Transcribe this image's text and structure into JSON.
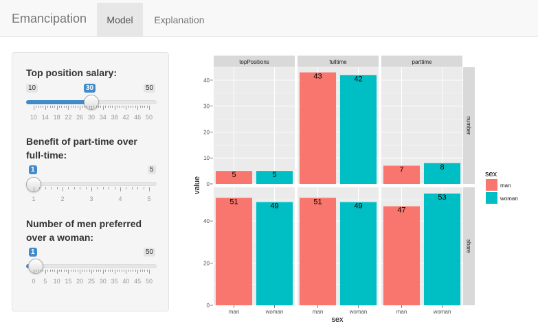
{
  "app": {
    "title": "Emancipation"
  },
  "tabs": [
    {
      "label": "Model",
      "active": true
    },
    {
      "label": "Explanation",
      "active": false
    }
  ],
  "sliders": [
    {
      "label": "Top position salary:",
      "min": 10,
      "max": 50,
      "value": 30,
      "min_label": "10",
      "max_label": "50",
      "value_label": "30",
      "tick_labels": [
        "10",
        "14",
        "18",
        "22",
        "26",
        "30",
        "34",
        "38",
        "42",
        "46",
        "50"
      ]
    },
    {
      "label": "Benefit of part-time over full-time:",
      "min": 1,
      "max": 5,
      "value": 1,
      "min_label": "",
      "max_label": "5",
      "value_label": "1",
      "tick_labels": [
        "1",
        "2",
        "3",
        "4",
        "5"
      ]
    },
    {
      "label": "Number of men preferred over a woman:",
      "min": 0,
      "max": 50,
      "value": 1,
      "min_label": "",
      "max_label": "50",
      "value_label": "1",
      "tick_labels": [
        "0",
        "5",
        "10",
        "15",
        "20",
        "25",
        "30",
        "35",
        "40",
        "45",
        "50"
      ]
    }
  ],
  "chart_data": {
    "type": "bar",
    "xlabel": "sex",
    "ylabel": "value",
    "columns": [
      "topPositions",
      "fulltime",
      "parttime"
    ],
    "rows": [
      "number",
      "share"
    ],
    "categories": [
      "man",
      "woman"
    ],
    "legend": {
      "title": "sex",
      "position": "right",
      "entries": [
        {
          "label": "man",
          "color": "#F8766D"
        },
        {
          "label": "woman",
          "color": "#00BFC4"
        }
      ]
    },
    "ylim": {
      "number": [
        0,
        45
      ],
      "share": [
        0,
        56
      ]
    },
    "yticks": {
      "number": [
        0,
        10,
        20,
        30,
        40
      ],
      "share": [
        0,
        20,
        40
      ]
    },
    "panels": [
      {
        "row": "number",
        "column": "topPositions",
        "values": [
          5,
          5
        ]
      },
      {
        "row": "number",
        "column": "fulltime",
        "values": [
          43,
          42
        ]
      },
      {
        "row": "number",
        "column": "parttime",
        "values": [
          7,
          8
        ]
      },
      {
        "row": "share",
        "column": "topPositions",
        "values": [
          51,
          49
        ]
      },
      {
        "row": "share",
        "column": "fulltime",
        "values": [
          51,
          49
        ]
      },
      {
        "row": "share",
        "column": "parttime",
        "values": [
          47,
          53
        ]
      }
    ]
  }
}
